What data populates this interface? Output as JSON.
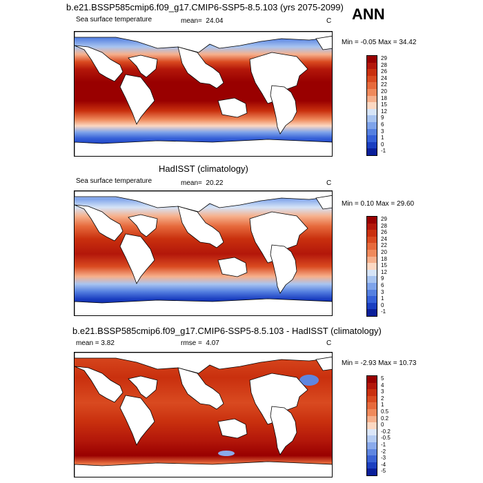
{
  "season": "ANN",
  "panels": [
    {
      "title": "b.e21.BSSP585cmip6.f09_g17.CMIP6-SSP5-8.5.103 (yrs 2075-2099)",
      "left_label": "Sea surface temperature",
      "stat_label": "mean=",
      "stat_value": "24.04",
      "units": "C",
      "minmax": "Min =  -0.05 Max =  34.42",
      "levels": [
        "29",
        "28",
        "26",
        "24",
        "22",
        "20",
        "18",
        "15",
        "12",
        "9",
        "6",
        "3",
        "1",
        "0",
        "-1"
      ],
      "colors": [
        "#990000",
        "#b3170a",
        "#c9300e",
        "#d94a20",
        "#e66a3c",
        "#ef8a5c",
        "#f6b08c",
        "#fcd8c2",
        "#d6e4f7",
        "#a8c4f0",
        "#7ea3ea",
        "#5580e0",
        "#3560d8",
        "#1a3ec0",
        "#0a1f9a"
      ]
    },
    {
      "title": "HadISST (climatology)",
      "left_label": "Sea surface temperature",
      "stat_label": "mean=",
      "stat_value": "20.22",
      "units": "C",
      "minmax": "Min =  0.10 Max =  29.60",
      "levels": [
        "29",
        "28",
        "26",
        "24",
        "22",
        "20",
        "18",
        "15",
        "12",
        "9",
        "6",
        "3",
        "1",
        "0",
        "-1"
      ],
      "colors": [
        "#990000",
        "#b3170a",
        "#c9300e",
        "#d94a20",
        "#e66a3c",
        "#ef8a5c",
        "#f6b08c",
        "#fcd8c2",
        "#d6e4f7",
        "#a8c4f0",
        "#7ea3ea",
        "#5580e0",
        "#3560d8",
        "#1a3ec0",
        "#0a1f9a"
      ]
    },
    {
      "title": "b.e21.BSSP585cmip6.f09_g17.CMIP6-SSP5-8.5.103 - HadISST (climatology)",
      "left_label": "mean =   3.82",
      "stat_label": "rmse =",
      "stat_value": "4.07",
      "units": "C",
      "minmax": "Min =  -2.93 Max =  10.73",
      "levels": [
        "5",
        "4",
        "3",
        "2",
        "1",
        "0.5",
        "0.2",
        "0",
        "-0.2",
        "-0.5",
        "-1",
        "-2",
        "-3",
        "-4",
        "-5"
      ],
      "colors": [
        "#990000",
        "#b3170a",
        "#c9300e",
        "#d94a20",
        "#e66a3c",
        "#ef8a5c",
        "#f6b08c",
        "#fcd8c2",
        "#dbe6f8",
        "#b5ccf2",
        "#8aaaeb",
        "#5f86e0",
        "#3a62d4",
        "#1c3fbf",
        "#0a1f9a"
      ]
    }
  ]
}
